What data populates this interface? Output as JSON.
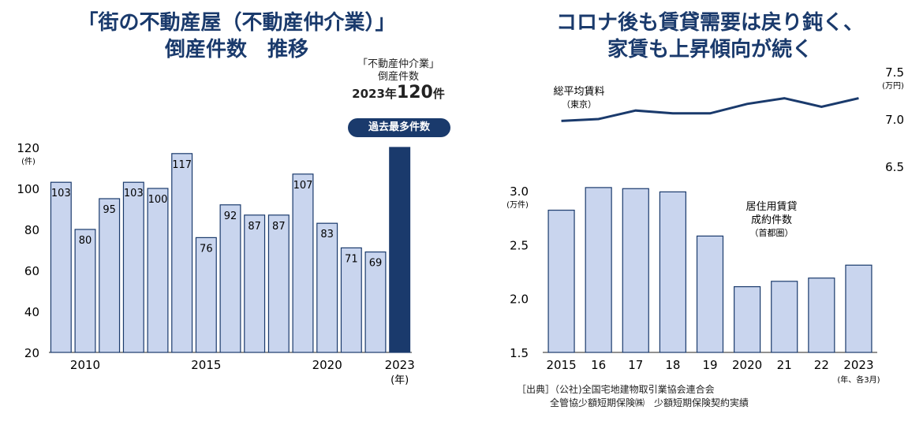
{
  "left_title": {
    "line1": "「街の不動産屋（不動産仲介業）」",
    "line2": "倒産件数　推移"
  },
  "right_title": {
    "line1": "コロナ後も賃貸需要は戻り鈍く、",
    "line2": "家賃も上昇傾向が続く"
  },
  "callout": {
    "line1": "「不動産仲介業」",
    "line2": "倒産件数",
    "year_text": "2023年",
    "value_text": "120",
    "unit_text": "件",
    "badge": "過去最多件数"
  },
  "source": {
    "line1": "［出典］（公社)全国宅地建物取引業協会連合会",
    "line2": "全管協少額短期保険㈱　少額短期保険契約実績"
  },
  "colors": {
    "bar": "#c9d5ee",
    "bar_highlight": "#1a3a6c",
    "line": "#1a3a6c",
    "stroke": "#1a3a6c"
  },
  "chart_data": [
    {
      "type": "bar",
      "x": [
        2009,
        2010,
        2011,
        2012,
        2013,
        2014,
        2015,
        2016,
        2017,
        2018,
        2019,
        2020,
        2021,
        2022,
        2023
      ],
      "values": [
        103,
        80,
        95,
        103,
        100,
        117,
        76,
        92,
        87,
        87,
        107,
        83,
        71,
        69,
        120
      ],
      "value_labels": [
        "103",
        "80",
        "95",
        "103",
        "100",
        "117",
        "76",
        "92",
        "87",
        "87",
        "107",
        "83",
        "71",
        "69",
        ""
      ],
      "x_tick_labels": [
        {
          "x": 2010,
          "label": "2010"
        },
        {
          "x": 2015,
          "label": "2015"
        },
        {
          "x": 2020,
          "label": "2020"
        },
        {
          "x": 2023,
          "label": "2023"
        }
      ],
      "x_unit": "(年)",
      "y_unit": "(件)",
      "y_ticks": [
        "20",
        "40",
        "60",
        "80",
        "100",
        "120"
      ],
      "ylim": [
        20,
        120
      ],
      "highlight_index": 14
    },
    {
      "type": "line",
      "name": "総平均賃料",
      "name_sub": "（東京）",
      "x": [
        "2015",
        "16",
        "17",
        "18",
        "19",
        "2020",
        "21",
        "22",
        "2023"
      ],
      "values": [
        6.98,
        7.0,
        7.09,
        7.06,
        7.06,
        7.16,
        7.22,
        7.13,
        7.22
      ],
      "y_ticks": [
        "6.5",
        "7.0",
        "7.5"
      ],
      "y_unit": "(万円)",
      "ylim": [
        6.5,
        7.5
      ]
    },
    {
      "type": "bar",
      "name": "居住用賃貸",
      "name_line2": "成約件数",
      "name_sub": "（首都圏）",
      "categories": [
        "2015",
        "16",
        "17",
        "18",
        "19",
        "2020",
        "21",
        "22",
        "2023"
      ],
      "values": [
        2.82,
        3.03,
        3.02,
        2.99,
        2.58,
        2.11,
        2.16,
        2.19,
        2.31
      ],
      "x_unit": "(年、各3月)",
      "y_ticks": [
        "1.5",
        "2.0",
        "2.5",
        "3.0"
      ],
      "y_unit": "(万件)",
      "ylim": [
        1.5,
        3.0
      ]
    }
  ]
}
